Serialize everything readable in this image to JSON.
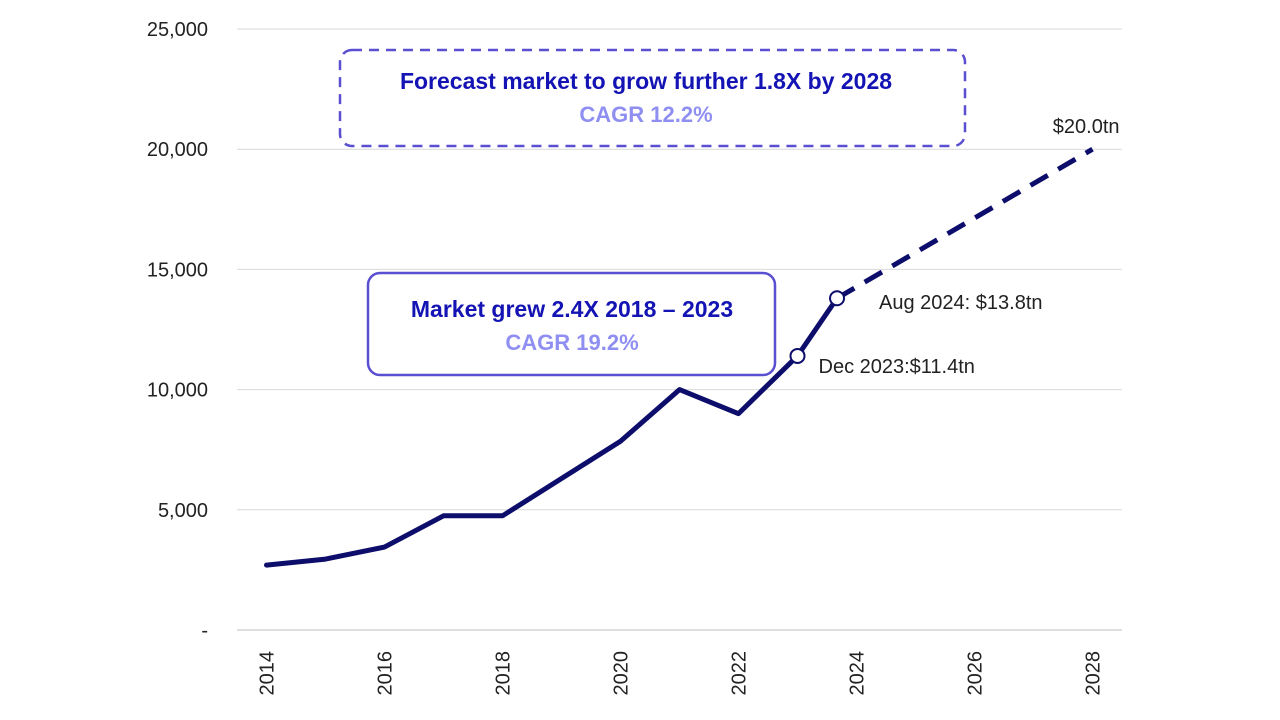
{
  "chart_data": {
    "type": "line",
    "x": [
      2014,
      2015,
      2016,
      2017,
      2018,
      2019,
      2020,
      2021,
      2022,
      2023,
      2024,
      2028
    ],
    "series": [
      {
        "style": "actual",
        "x": [
          2014,
          2015,
          2016,
          2017,
          2018,
          2019,
          2020,
          2021,
          2022,
          2023,
          2023.67
        ],
        "values": [
          2700,
          2950,
          3450,
          4750,
          4750,
          6300,
          7850,
          10000,
          9000,
          11400,
          13800
        ]
      },
      {
        "style": "forecast",
        "x": [
          2023.67,
          2028
        ],
        "values": [
          13800,
          20000
        ]
      }
    ],
    "xticks": [
      "2014",
      "2016",
      "2018",
      "2020",
      "2022",
      "2024",
      "2026",
      "2028"
    ],
    "yticks": [
      "-",
      "5,000",
      "10,000",
      "15,000",
      "20,000",
      "25,000"
    ],
    "ylim": [
      0,
      25000
    ],
    "xlim": [
      2013.5,
      2028.5
    ],
    "grid": true,
    "line_color": "#0d0d6b",
    "annotations": {
      "dec2023": {
        "label": "Dec 2023:$11.4tn",
        "x": 2023,
        "y": 11400
      },
      "aug2024": {
        "label": "Aug 2024: $13.8tn",
        "x": 2023.67,
        "y": 13800
      },
      "end2028": {
        "label": "$20.0tn",
        "x": 2028,
        "y": 20000
      }
    },
    "boxes": {
      "forecast": {
        "title": "Forecast market to grow further 1.8X by 2028",
        "subtitle": "CAGR 12.2%",
        "border": "dashed",
        "color": "#5a4fd0"
      },
      "historic": {
        "title": "Market grew 2.4X 2018 – 2023",
        "subtitle": "CAGR 19.2%",
        "border": "solid",
        "color": "#5a4fd0"
      }
    }
  }
}
